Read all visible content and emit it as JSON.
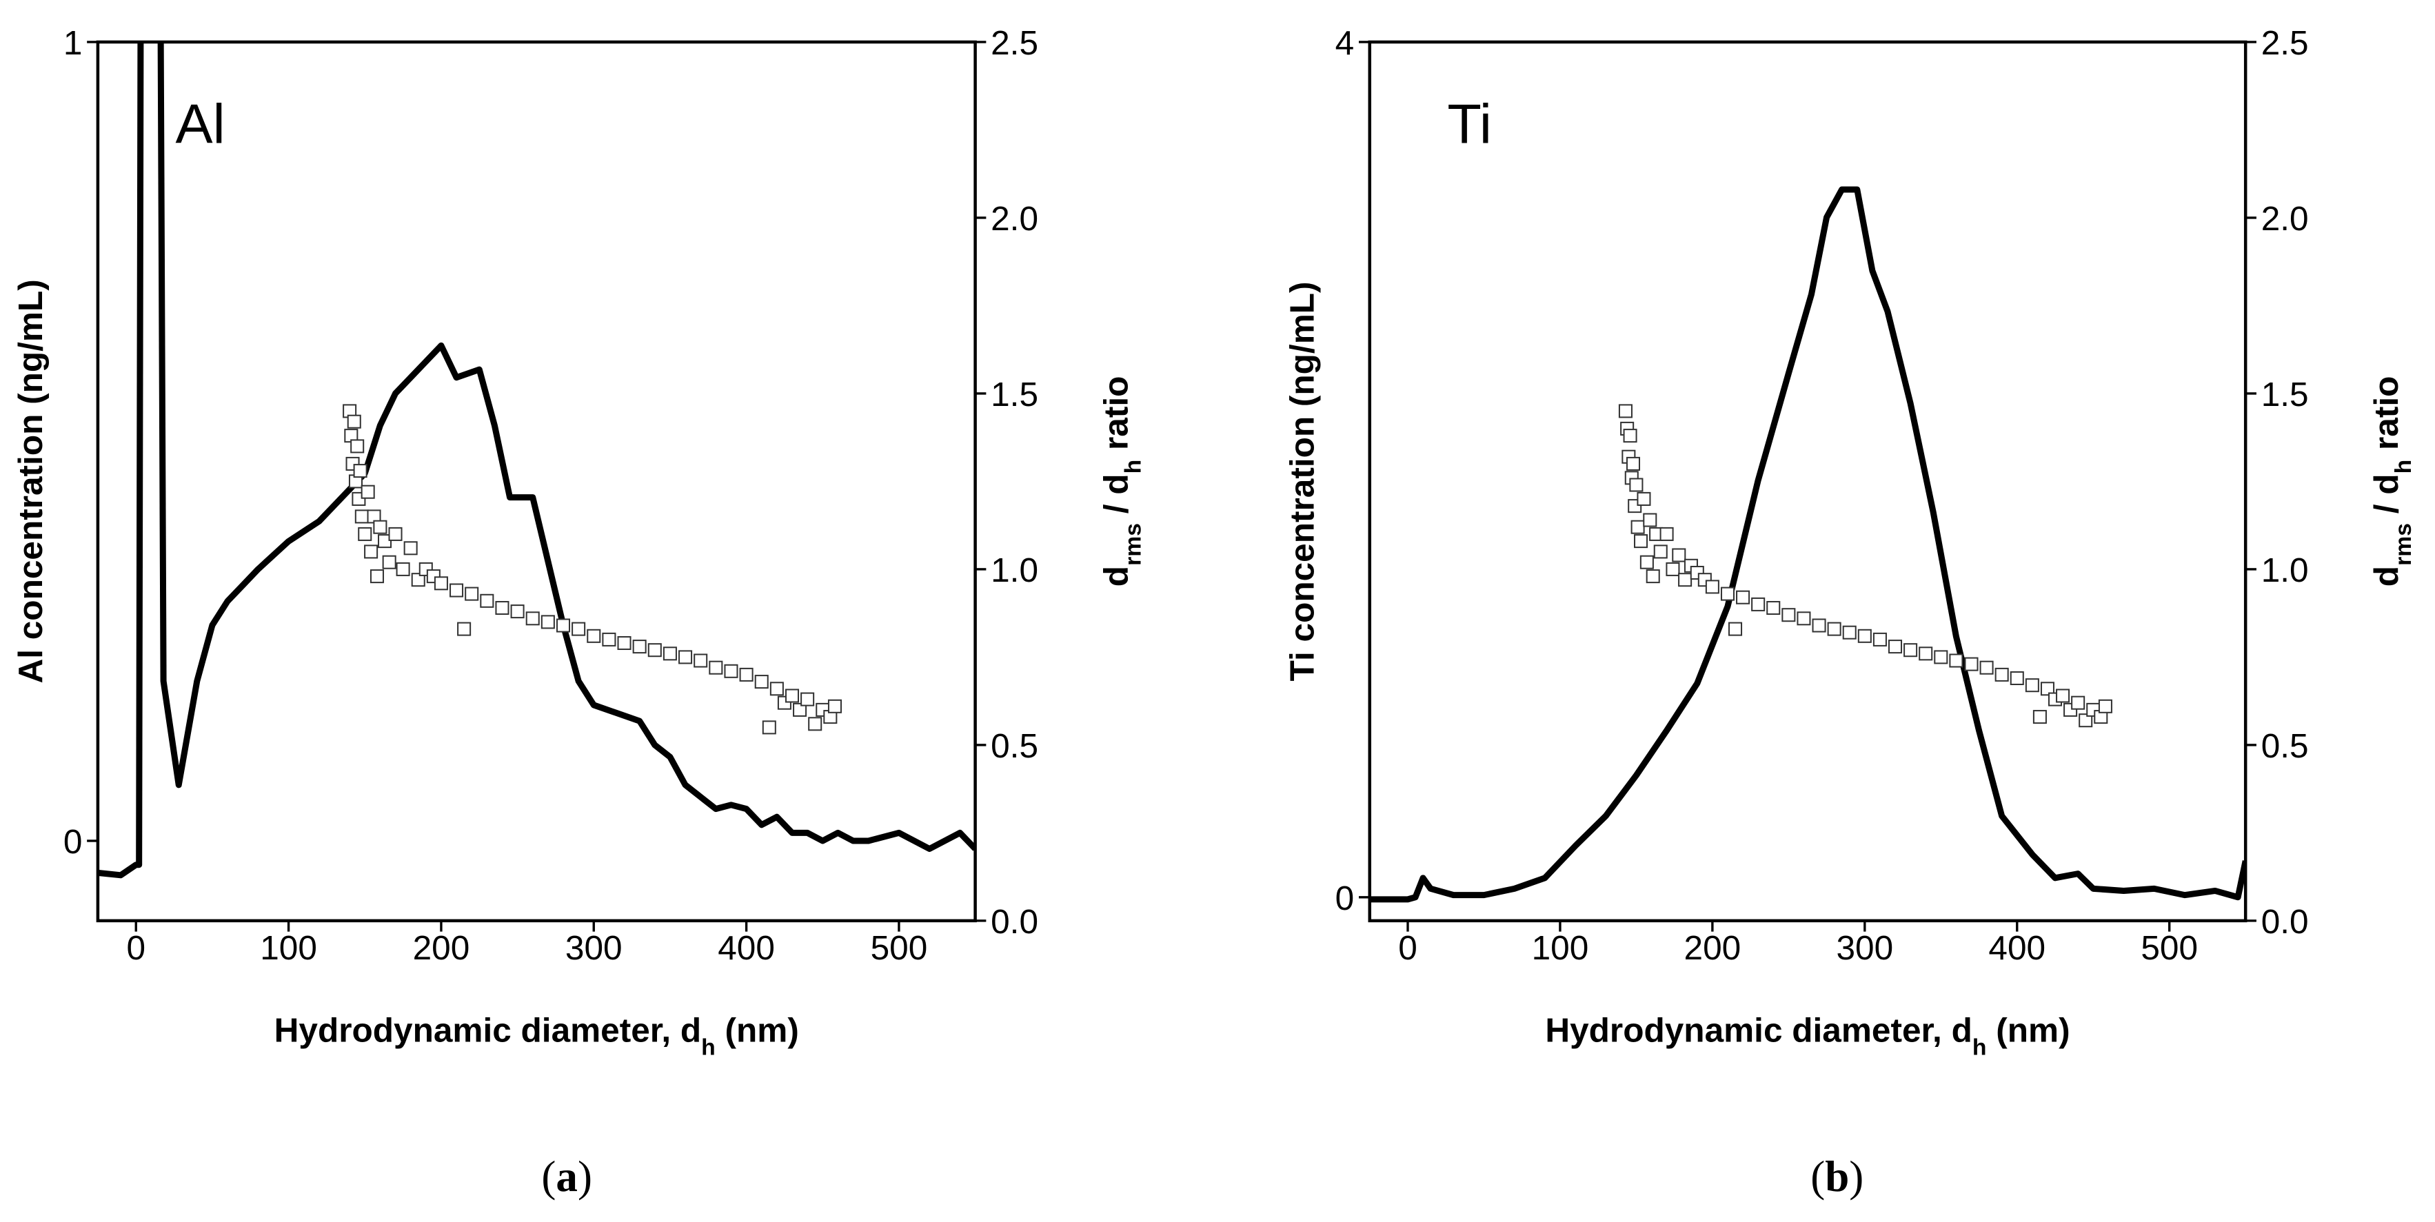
{
  "chart_data": [
    {
      "type": "line",
      "annotation": "Al",
      "xlabel": [
        "Hydrodynamic diameter, d",
        "h",
        " (nm)"
      ],
      "ylabel": "Al concentration (ng/mL)",
      "y2label": [
        "d",
        "rms",
        " / d",
        "h",
        " ratio"
      ],
      "caption": [
        "(",
        "a",
        ")"
      ],
      "xlim": [
        -25,
        550
      ],
      "xticks": [
        0,
        100,
        200,
        300,
        400,
        500
      ],
      "ylim": [
        -0.1,
        1
      ],
      "yticks": [
        0,
        1
      ],
      "y2lim": [
        0,
        2.5
      ],
      "y2ticks": [
        {
          "value": 0,
          "label": "0.0"
        },
        {
          "value": 0.5,
          "label": "0.5"
        },
        {
          "value": 1,
          "label": "1.0"
        },
        {
          "value": 1.5,
          "label": "1.5"
        },
        {
          "value": 2,
          "label": "2.0"
        },
        {
          "value": 2.5,
          "label": "2.5"
        }
      ],
      "series": [
        {
          "type": "line",
          "color": "#000000",
          "x": [
            -25,
            -10,
            0,
            2,
            4,
            10,
            14,
            18,
            28,
            40,
            50,
            60,
            70,
            80,
            100,
            120,
            130,
            150,
            160,
            170,
            180,
            190,
            200,
            210,
            225,
            235,
            245,
            260,
            270,
            280,
            290,
            300,
            315,
            330,
            340,
            350,
            360,
            370,
            380,
            390,
            400,
            410,
            420,
            430,
            440,
            450,
            460,
            470,
            480,
            500,
            520,
            540,
            550
          ],
          "values": [
            -0.04,
            -0.043,
            -0.03,
            -0.03,
            2,
            2,
            2,
            0.2,
            0.07,
            0.2,
            0.27,
            0.3,
            0.32,
            0.34,
            0.375,
            0.4,
            0.42,
            0.46,
            0.52,
            0.56,
            0.58,
            0.6,
            0.62,
            0.58,
            0.59,
            0.52,
            0.43,
            0.43,
            0.35,
            0.27,
            0.2,
            0.17,
            0.16,
            0.15,
            0.12,
            0.105,
            0.07,
            0.055,
            0.04,
            0.045,
            0.04,
            0.02,
            0.03,
            0.01,
            0.01,
            0,
            0.01,
            0,
            0,
            0.01,
            -0.01,
            0.01,
            -0.01
          ]
        },
        {
          "type": "scatter",
          "axis": "y2",
          "color": "#333333",
          "x": [
            140,
            141,
            142,
            143,
            144,
            145,
            146,
            147,
            148,
            150,
            152,
            154,
            156,
            158,
            160,
            163,
            166,
            170,
            175,
            180,
            185,
            190,
            195,
            200,
            210,
            215,
            220,
            230,
            240,
            250,
            260,
            270,
            280,
            290,
            300,
            310,
            320,
            330,
            340,
            350,
            360,
            370,
            380,
            390,
            400,
            410,
            415,
            420,
            425,
            430,
            435,
            440,
            445,
            450,
            455,
            458
          ],
          "values": [
            1.45,
            1.38,
            1.3,
            1.42,
            1.25,
            1.35,
            1.2,
            1.28,
            1.15,
            1.1,
            1.22,
            1.05,
            1.15,
            0.98,
            1.12,
            1.08,
            1.02,
            1.1,
            1,
            1.06,
            0.97,
            1,
            0.98,
            0.96,
            0.94,
            0.83,
            0.93,
            0.91,
            0.89,
            0.88,
            0.86,
            0.85,
            0.84,
            0.83,
            0.81,
            0.8,
            0.79,
            0.78,
            0.77,
            0.76,
            0.75,
            0.74,
            0.72,
            0.71,
            0.7,
            0.68,
            0.55,
            0.66,
            0.62,
            0.64,
            0.6,
            0.63,
            0.56,
            0.6,
            0.58,
            0.61
          ]
        }
      ]
    },
    {
      "type": "line",
      "annotation": "Ti",
      "xlabel": [
        "Hydrodynamic diameter, d",
        "h",
        " (nm)"
      ],
      "ylabel": "Ti concentration (ng/mL)",
      "y2label": [
        "d",
        "rms",
        " / d",
        "h",
        " ratio"
      ],
      "caption": [
        "(",
        "b",
        ")"
      ],
      "xlim": [
        -25,
        550
      ],
      "xticks": [
        0,
        100,
        200,
        300,
        400,
        500
      ],
      "ylim": [
        -0.11,
        4
      ],
      "yticks": [
        0,
        4
      ],
      "y2lim": [
        0,
        2.5
      ],
      "y2ticks": [
        {
          "value": 0,
          "label": "0.0"
        },
        {
          "value": 0.5,
          "label": "0.5"
        },
        {
          "value": 1,
          "label": "1.0"
        },
        {
          "value": 1.5,
          "label": "1.5"
        },
        {
          "value": 2,
          "label": "2.0"
        },
        {
          "value": 2.5,
          "label": "2.5"
        }
      ],
      "series": [
        {
          "type": "line",
          "color": "#000000",
          "x": [
            -25,
            0,
            5,
            10,
            15,
            30,
            50,
            70,
            90,
            110,
            130,
            150,
            170,
            190,
            210,
            230,
            250,
            265,
            275,
            285,
            295,
            305,
            315,
            330,
            345,
            360,
            375,
            390,
            410,
            425,
            440,
            450,
            470,
            490,
            510,
            530,
            545,
            550
          ],
          "values": [
            -0.01,
            -0.01,
            0,
            0.09,
            0.04,
            0.01,
            0.01,
            0.04,
            0.09,
            0.24,
            0.38,
            0.57,
            0.78,
            1,
            1.36,
            1.95,
            2.45,
            2.82,
            3.18,
            3.31,
            3.31,
            2.93,
            2.74,
            2.31,
            1.8,
            1.22,
            0.78,
            0.38,
            0.2,
            0.09,
            0.11,
            0.04,
            0.03,
            0.04,
            0.01,
            0.03,
            0,
            0.17
          ]
        },
        {
          "type": "scatter",
          "axis": "y2",
          "color": "#333333",
          "x": [
            143,
            144,
            145,
            146,
            147,
            148,
            149,
            150,
            151,
            153,
            155,
            157,
            159,
            161,
            163,
            166,
            170,
            174,
            178,
            182,
            186,
            190,
            195,
            200,
            210,
            215,
            220,
            230,
            240,
            250,
            260,
            270,
            280,
            290,
            300,
            310,
            320,
            330,
            340,
            350,
            360,
            370,
            380,
            390,
            400,
            410,
            415,
            420,
            425,
            430,
            435,
            440,
            445,
            450,
            455,
            458
          ],
          "values": [
            1.45,
            1.4,
            1.32,
            1.38,
            1.26,
            1.3,
            1.18,
            1.24,
            1.12,
            1.08,
            1.2,
            1.02,
            1.14,
            0.98,
            1.1,
            1.05,
            1.1,
            1,
            1.04,
            0.97,
            1.01,
            0.99,
            0.97,
            0.95,
            0.93,
            0.83,
            0.92,
            0.9,
            0.89,
            0.87,
            0.86,
            0.84,
            0.83,
            0.82,
            0.81,
            0.8,
            0.78,
            0.77,
            0.76,
            0.75,
            0.74,
            0.73,
            0.72,
            0.7,
            0.69,
            0.67,
            0.58,
            0.66,
            0.63,
            0.64,
            0.6,
            0.62,
            0.57,
            0.6,
            0.58,
            0.61
          ]
        }
      ]
    }
  ]
}
